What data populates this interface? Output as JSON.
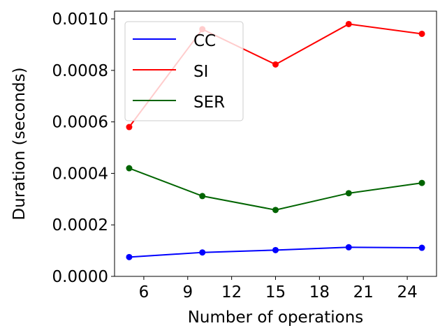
{
  "chart_data": {
    "type": "line",
    "xlabel": "Number of operations",
    "ylabel": "Duration (seconds)",
    "xlim": [
      4,
      26
    ],
    "ylim": [
      0,
      0.00103
    ],
    "xticks": [
      "6",
      "9",
      "12",
      "15",
      "18",
      "21",
      "24"
    ],
    "yticks": [
      "0.0000",
      "0.0002",
      "0.0004",
      "0.0006",
      "0.0008",
      "0.0010"
    ],
    "grid": false,
    "legend_position": "top-left",
    "x": [
      5,
      10,
      15,
      20,
      25
    ],
    "series": [
      {
        "name": "CC",
        "color": "#0000ff",
        "values": [
          7.5e-05,
          9.3e-05,
          0.000102,
          0.000113,
          0.000111
        ]
      },
      {
        "name": "SI",
        "color": "#ff0000",
        "values": [
          0.00058,
          0.00096,
          0.000823,
          0.00098,
          0.000942
        ]
      },
      {
        "name": "SER",
        "color": "#006400",
        "values": [
          0.00042,
          0.000312,
          0.000258,
          0.000323,
          0.000363
        ]
      }
    ]
  }
}
